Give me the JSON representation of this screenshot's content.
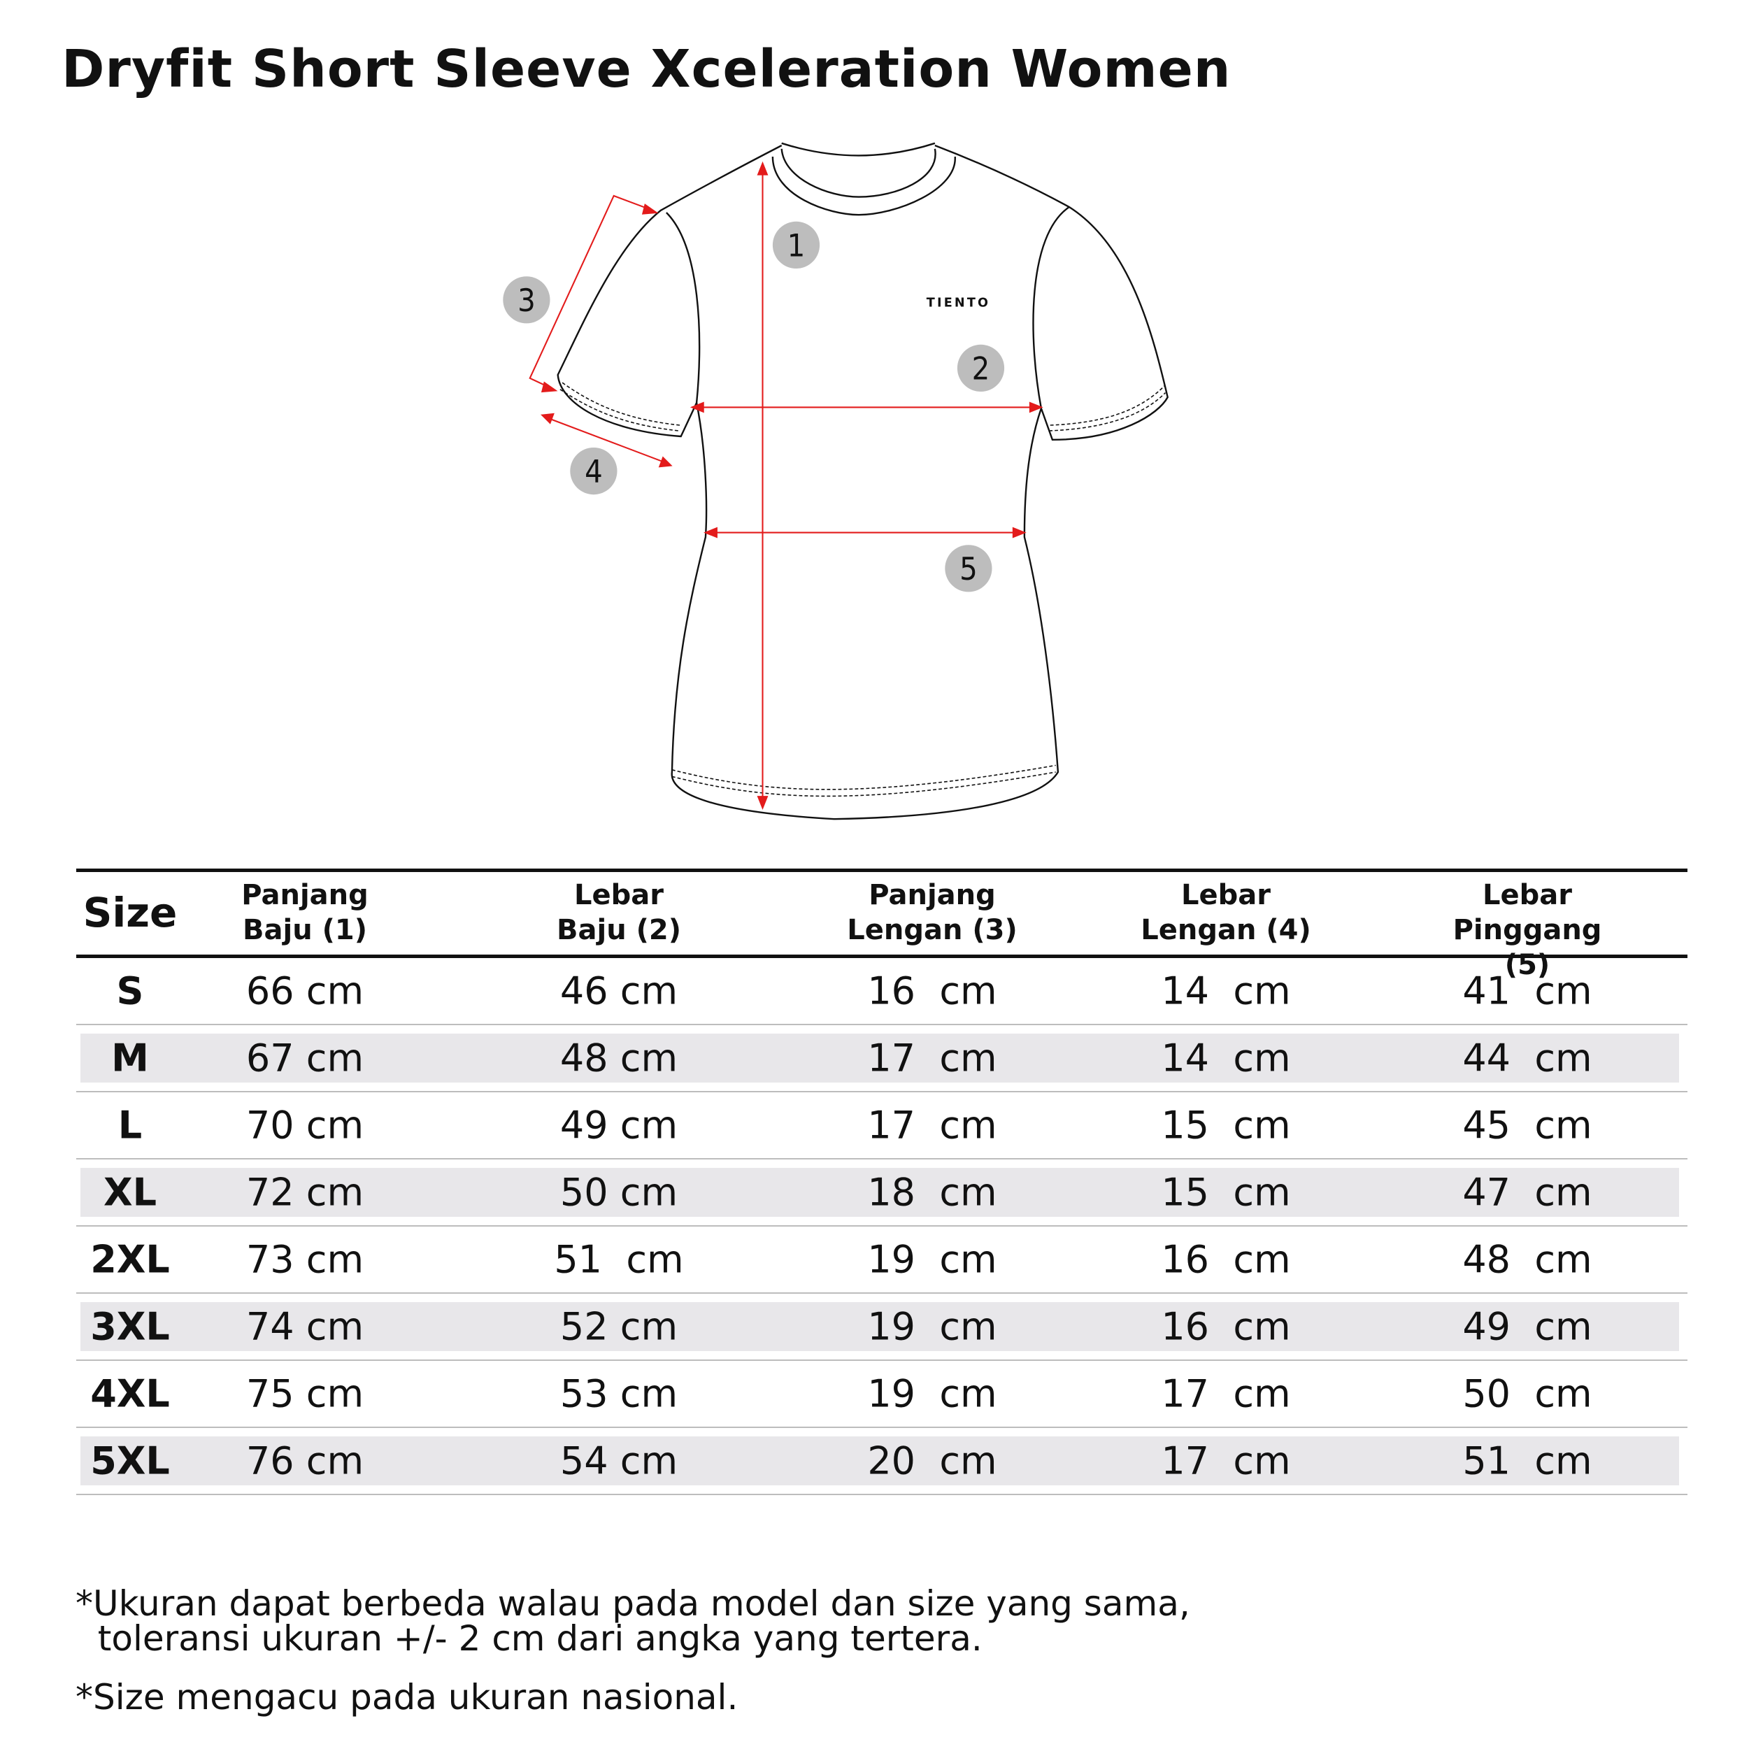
{
  "title": "Dryfit Short Sleeve Xceleration Women",
  "diagram": {
    "logo_text": "TIENTO",
    "markers": [
      "1",
      "2",
      "3",
      "4",
      "5"
    ],
    "colors": {
      "measure_line": "#e31b1b",
      "marker_fill": "#bdbdbd",
      "outline": "#111111"
    }
  },
  "table": {
    "size_header": "Size",
    "headers": [
      "Panjang\nBaju (1)",
      "Lebar\nBaju (2)",
      "Panjang\nLengan (3)",
      "Lebar\nLengan (4)",
      "Lebar\nPinggang (5)"
    ],
    "rows": [
      {
        "size": "S",
        "values": [
          "66 cm",
          "46 cm",
          "16  cm",
          "14  cm",
          "41  cm"
        ]
      },
      {
        "size": "M",
        "values": [
          "67 cm",
          "48 cm",
          "17  cm",
          "14  cm",
          "44  cm"
        ]
      },
      {
        "size": "L",
        "values": [
          "70 cm",
          "49 cm",
          "17  cm",
          "15  cm",
          "45  cm"
        ]
      },
      {
        "size": "XL",
        "values": [
          "72 cm",
          "50 cm",
          "18  cm",
          "15  cm",
          "47  cm"
        ]
      },
      {
        "size": "2XL",
        "values": [
          "73 cm",
          "51  cm",
          "19  cm",
          "16  cm",
          "48  cm"
        ]
      },
      {
        "size": "3XL",
        "values": [
          "74 cm",
          "52 cm",
          "19  cm",
          "16  cm",
          "49  cm"
        ]
      },
      {
        "size": "4XL",
        "values": [
          "75 cm",
          "53 cm",
          "19  cm",
          "17  cm",
          "50  cm"
        ]
      },
      {
        "size": "5XL",
        "values": [
          "76 cm",
          "54 cm",
          "20  cm",
          "17  cm",
          "51  cm"
        ]
      }
    ],
    "shade_color": "#e8e7ea"
  },
  "notes": [
    "*Ukuran dapat berbeda walau pada model dan size yang sama,\n  toleransi ukuran +/- 2 cm dari angka yang tertera.",
    "*Size mengacu pada ukuran nasional."
  ]
}
